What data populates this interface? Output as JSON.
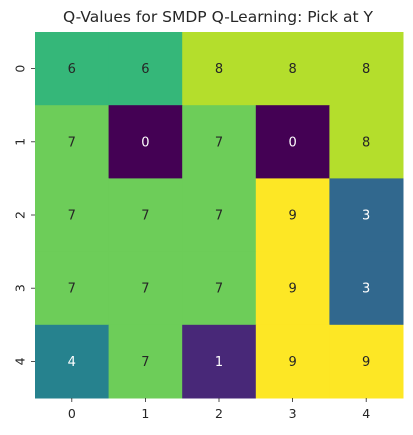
{
  "chart_data": {
    "type": "heatmap",
    "title": "Q-Values for SMDP Q-Learning: Pick at Y",
    "xlabel": "",
    "ylabel": "",
    "x_categories": [
      "0",
      "1",
      "2",
      "3",
      "4"
    ],
    "y_categories": [
      "0",
      "1",
      "2",
      "3",
      "4"
    ],
    "values": [
      [
        6,
        6,
        8,
        8,
        8
      ],
      [
        7,
        0,
        7,
        0,
        8
      ],
      [
        7,
        7,
        7,
        9,
        3
      ],
      [
        7,
        7,
        7,
        9,
        3
      ],
      [
        4,
        7,
        1,
        9,
        9
      ]
    ],
    "value_range": [
      0,
      9
    ],
    "colormap": "viridis",
    "annotated": true,
    "colorbar": false
  }
}
